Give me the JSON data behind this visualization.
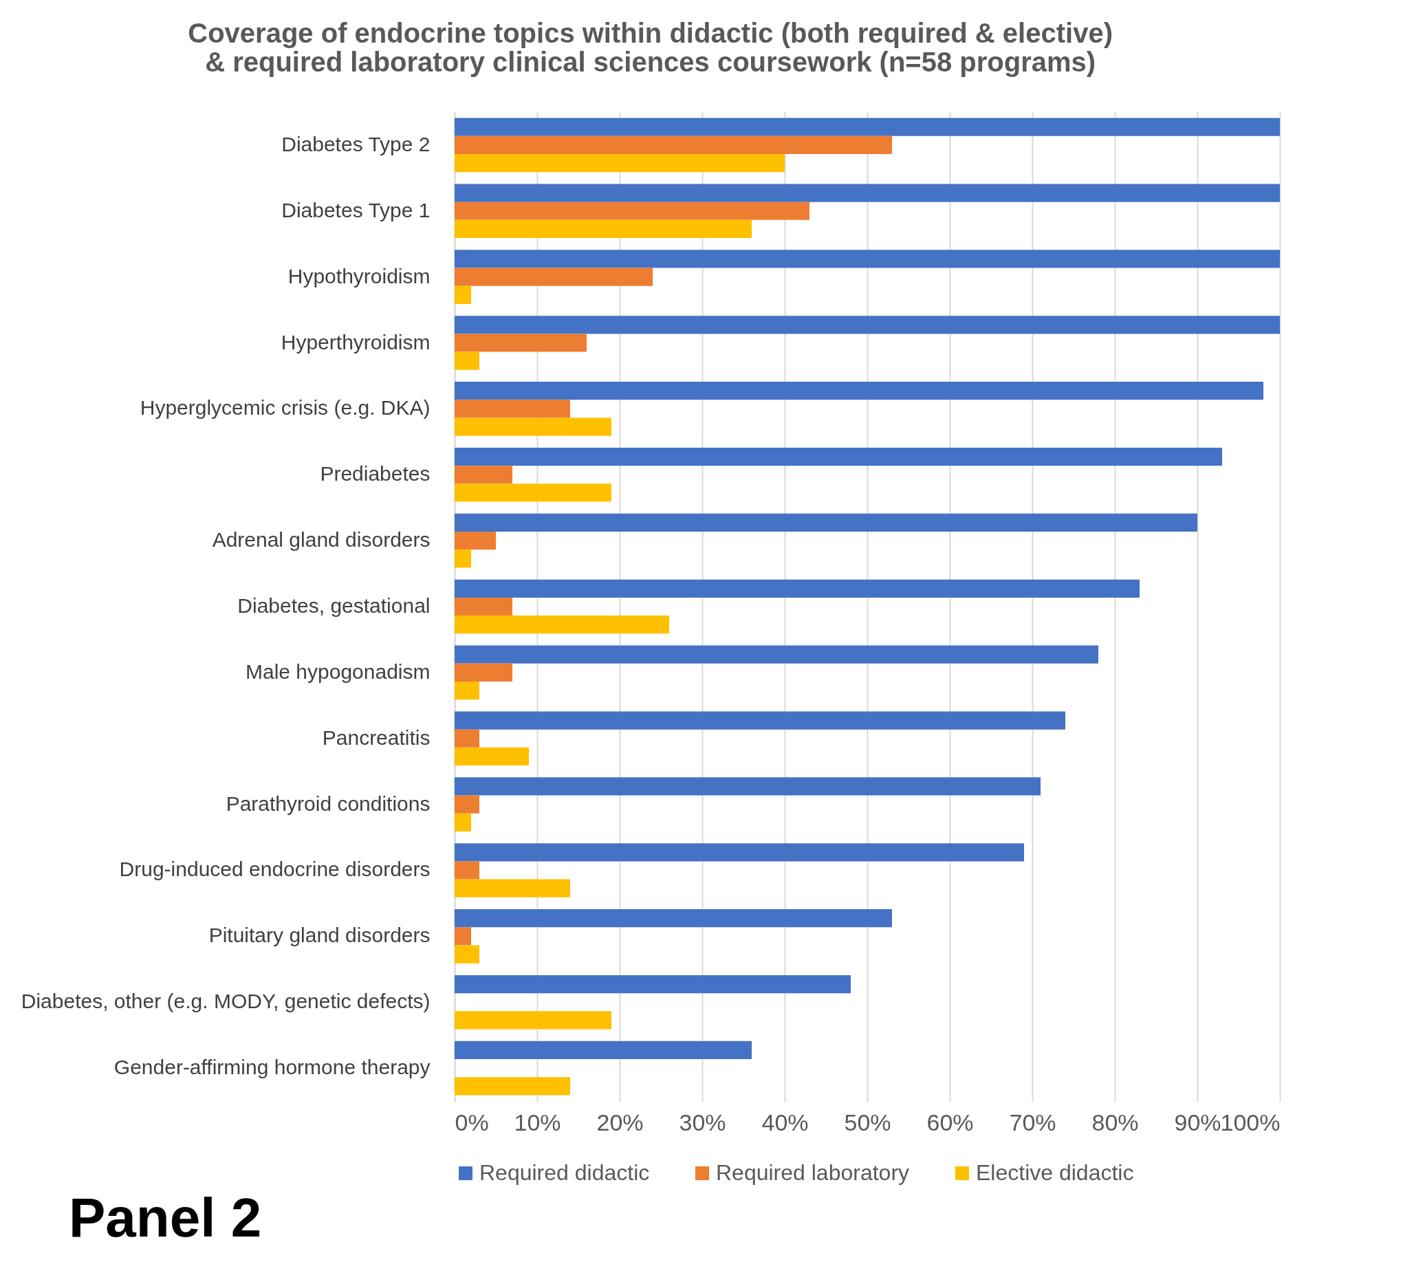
{
  "chart_data": {
    "type": "bar",
    "orientation": "horizontal",
    "title": "Coverage of endocrine topics within didactic (both required & elective)\n& required laboratory clinical sciences coursework (n=58 programs)",
    "categories": [
      "Diabetes Type 2",
      "Diabetes Type 1",
      "Hypothyroidism",
      "Hyperthyroidism",
      "Hyperglycemic crisis (e.g. DKA)",
      "Prediabetes",
      "Adrenal gland disorders",
      "Diabetes, gestational",
      "Male hypogonadism",
      "Pancreatitis",
      "Parathyroid conditions",
      "Drug-induced endocrine disorders",
      "Pituitary gland disorders",
      "Diabetes, other (e.g. MODY, genetic defects)",
      "Gender-affirming hormone therapy"
    ],
    "series": [
      {
        "name": "Required didactic",
        "color": "#4472c4",
        "values": [
          100,
          100,
          100,
          100,
          98,
          93,
          90,
          83,
          78,
          74,
          71,
          69,
          53,
          48,
          36
        ]
      },
      {
        "name": "Required laboratory",
        "color": "#ed7d31",
        "values": [
          53,
          43,
          24,
          16,
          14,
          7,
          5,
          7,
          7,
          3,
          3,
          3,
          2,
          0,
          0
        ]
      },
      {
        "name": "Elective didactic",
        "color": "#ffc000",
        "values": [
          40,
          36,
          2,
          3,
          19,
          19,
          2,
          26,
          3,
          9,
          2,
          14,
          3,
          19,
          14
        ]
      }
    ],
    "xlim": [
      0,
      100
    ],
    "xticks": [
      {
        "value": 0,
        "label": "0%"
      },
      {
        "value": 10,
        "label": "10%"
      },
      {
        "value": 20,
        "label": "20%"
      },
      {
        "value": 30,
        "label": "30%"
      },
      {
        "value": 40,
        "label": "40%"
      },
      {
        "value": 50,
        "label": "50%"
      },
      {
        "value": 60,
        "label": "60%"
      },
      {
        "value": 70,
        "label": "70%"
      },
      {
        "value": 80,
        "label": "80%"
      },
      {
        "value": 90,
        "label": "90%"
      },
      {
        "value": 100,
        "label": "100%"
      }
    ],
    "grid": "x",
    "legend": "bottom",
    "annotations": [
      "Panel 2"
    ]
  }
}
